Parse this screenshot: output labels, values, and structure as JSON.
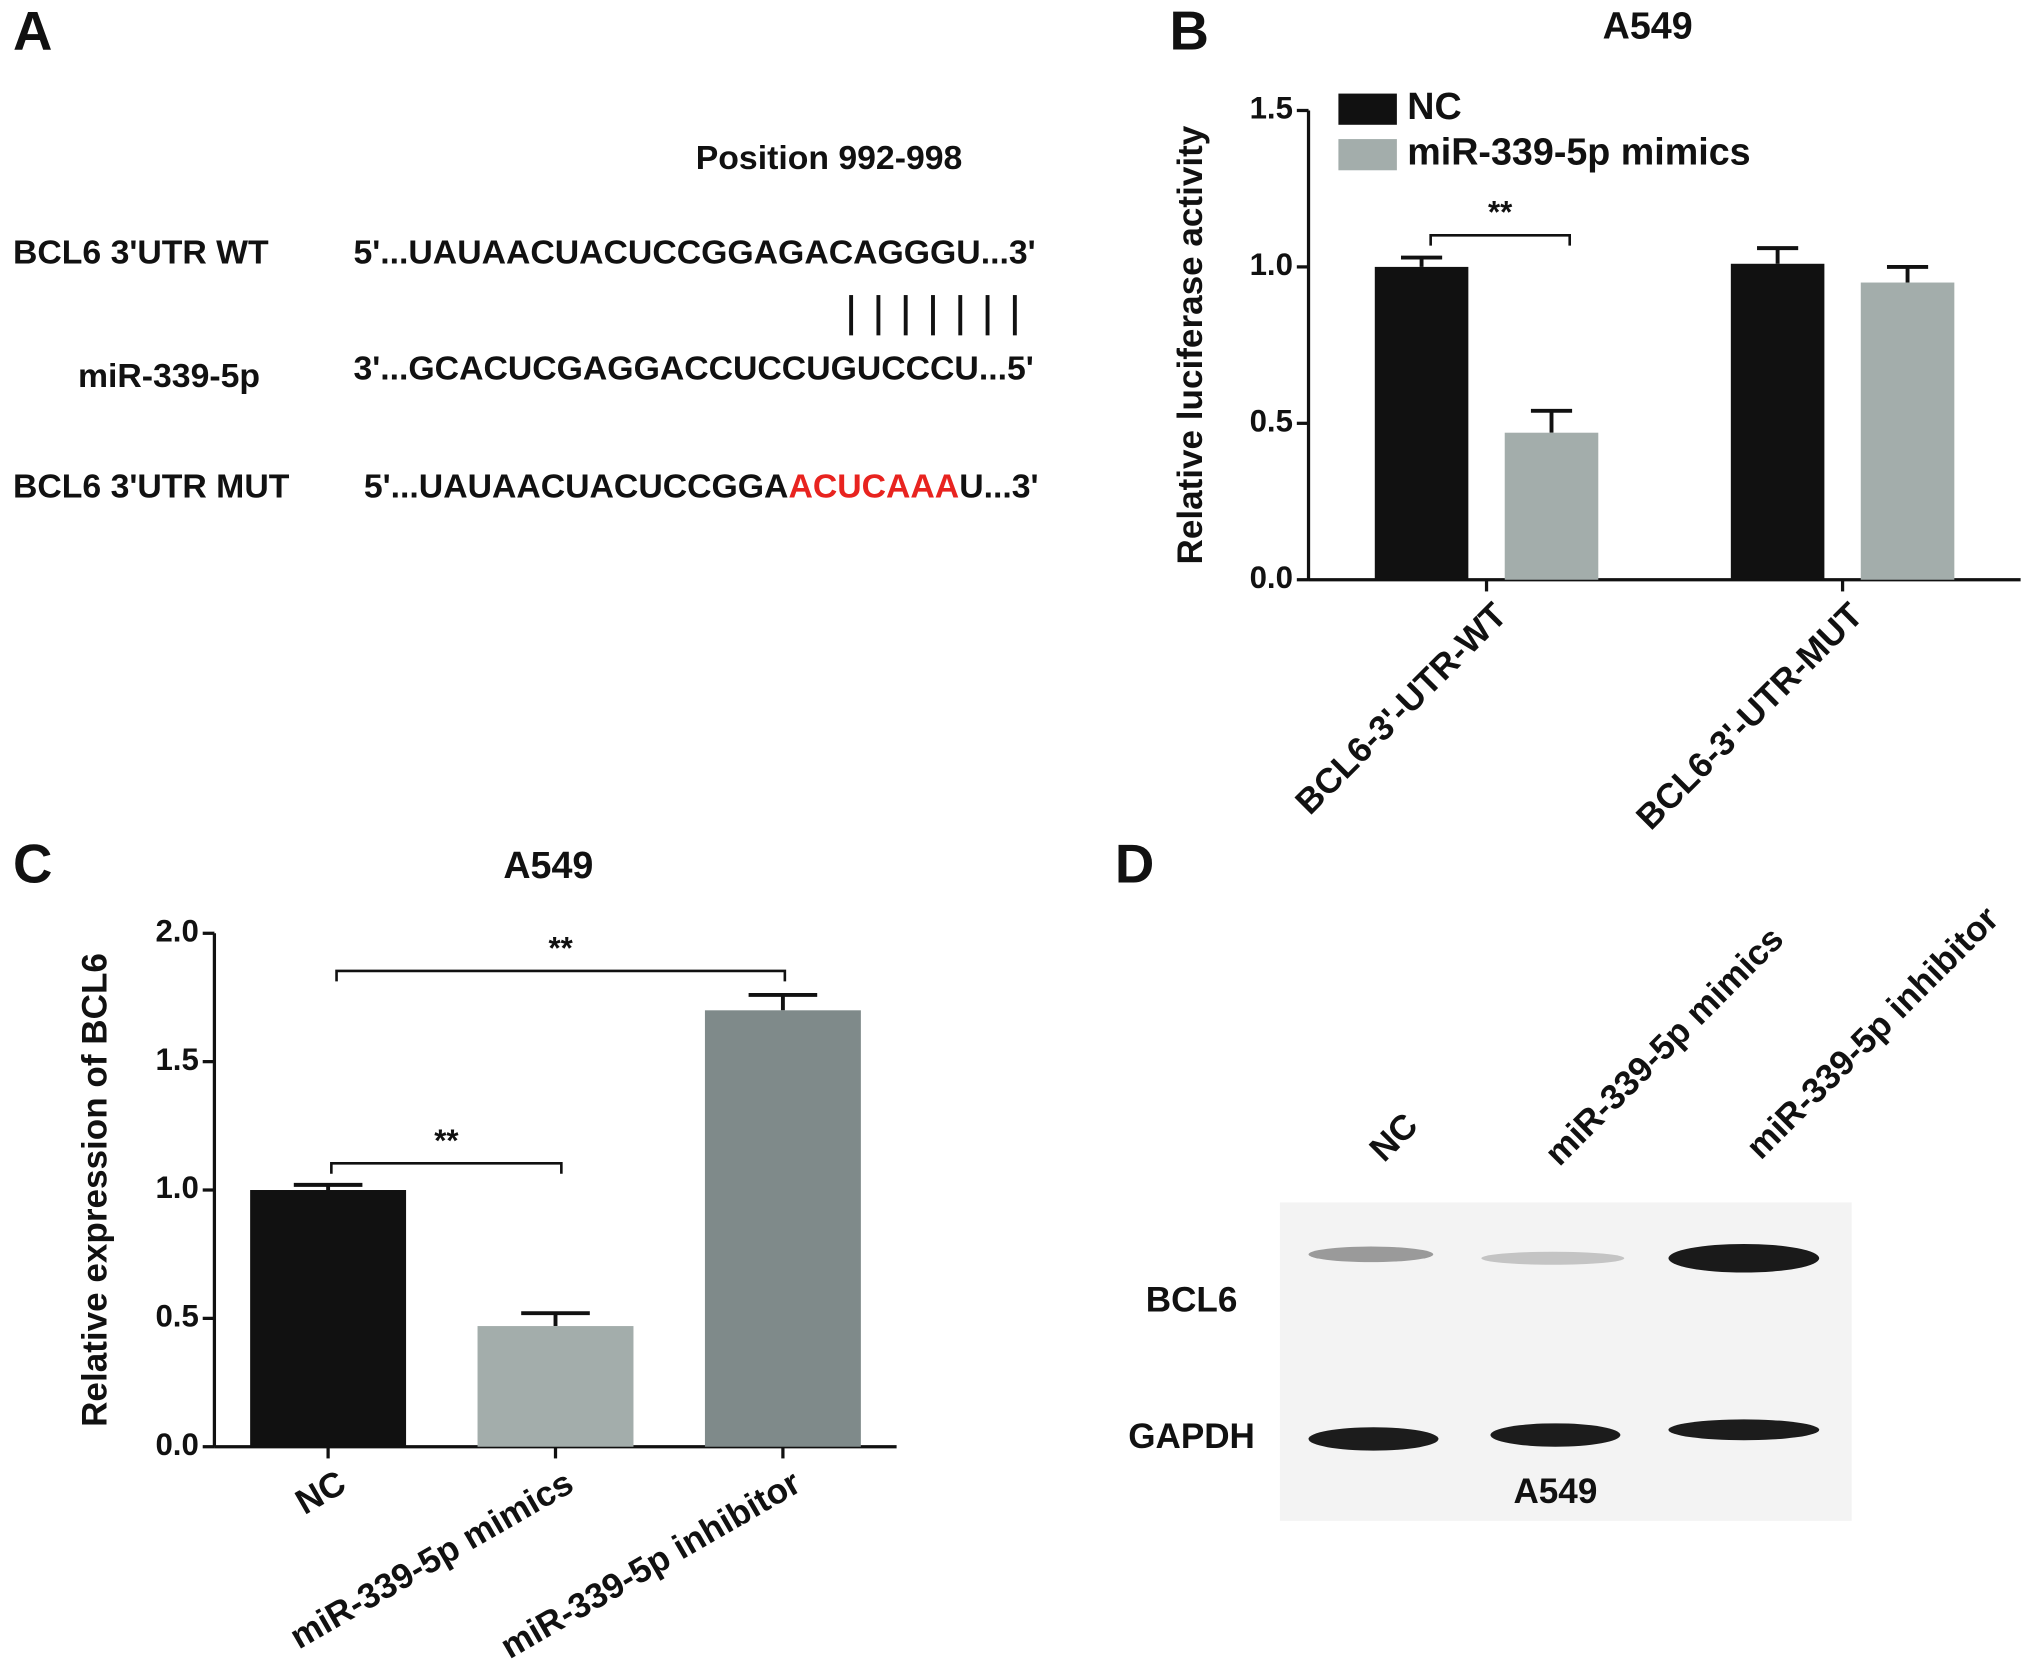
{
  "panel_labels": [
    "A",
    "B",
    "C",
    "D"
  ],
  "sequence_panel": {
    "position": "Position 992-998",
    "rows": [
      {
        "label": "BCL6 3'UTR WT",
        "sequence": "5'...UAUAACUACUCCGGAGACAGGGU...3'"
      },
      {
        "label": "miR-339-5p",
        "sequence": "3'...GCACUCGAGGACCUCCUGUCCCU...5'"
      },
      {
        "label": "BCL6 3'UTR MUT",
        "sequence_parts": [
          "5'...UAUAACUACUCCGGA",
          "ACUCAAA",
          "U...3'"
        ]
      }
    ]
  },
  "chart_data": [
    {
      "type": "bar",
      "title": "A549",
      "y_label": "Relative luciferase activity",
      "categories": [
        "BCL6-3'-UTR-WT",
        "BCL6-3'-UTR-MUT"
      ],
      "series": [
        {
          "name": "NC",
          "color": "#111111",
          "values": [
            1.0,
            1.01
          ],
          "errors": [
            0.03,
            0.05
          ]
        },
        {
          "name": "miR-339-5p mimics",
          "color": "#a3adab",
          "values": [
            0.47,
            0.95
          ],
          "errors": [
            0.07,
            0.05
          ]
        }
      ],
      "ylim": [
        0,
        1.5
      ],
      "yticks": [
        {
          "value": 0,
          "label": "0.0"
        },
        {
          "value": 0.5,
          "label": "0.5"
        },
        {
          "value": 1,
          "label": "1.0"
        },
        {
          "value": 1.5,
          "label": "1.5"
        }
      ],
      "legend": "upper left",
      "annotations": [
        "**"
      ]
    },
    {
      "type": "bar",
      "title": "A549",
      "y_label": "Relative expression of BCL6",
      "categories": [
        "NC",
        "miR-339-5p mimics",
        "miR-339-5p inhibitor"
      ],
      "values": [
        1.0,
        0.47,
        1.7
      ],
      "errors": [
        0.02,
        0.05,
        0.06
      ],
      "colors": [
        "#111111",
        "#a3adab",
        "#7f8a8a"
      ],
      "ylim": [
        0,
        2
      ],
      "yticks": [
        {
          "value": 0,
          "label": "0.0"
        },
        {
          "value": 0.5,
          "label": "0.5"
        },
        {
          "value": 1,
          "label": "1.0"
        },
        {
          "value": 1.5,
          "label": "1.5"
        },
        {
          "value": 2,
          "label": "2.0"
        }
      ],
      "annotations": [
        "**",
        "**"
      ]
    }
  ],
  "blot_panel": {
    "lanes": [
      "NC",
      "miR-339-5p mimics",
      "miR-339-5p inhibitor"
    ],
    "rows": [
      "BCL6",
      "GAPDH"
    ],
    "cell_line": "A549"
  }
}
